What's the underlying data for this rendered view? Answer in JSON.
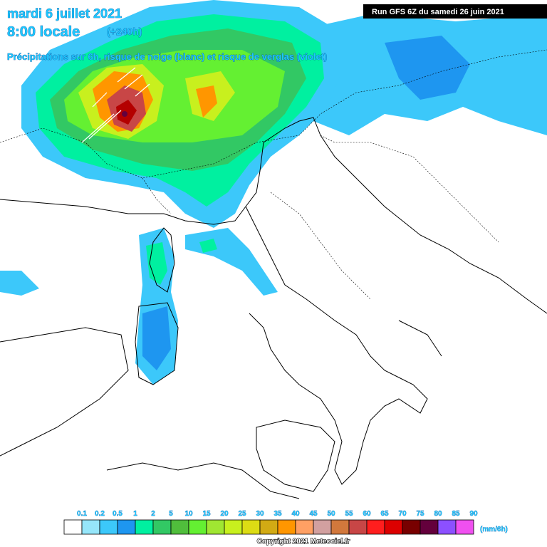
{
  "header": {
    "date": "mardi 6 juillet 2021",
    "time": "8:00 locale",
    "lead": "(+240h)",
    "subtitle": "Précipitations sur 6h, risque de neige (blanc) et risque de verglas (violet)",
    "run": "Run GFS 6Z du samedi 26 juin 2021"
  },
  "legend": {
    "labels": [
      "0.1",
      "0.2",
      "0.5",
      "1",
      "2",
      "5",
      "10",
      "15",
      "20",
      "25",
      "30",
      "35",
      "40",
      "45",
      "50",
      "55",
      "60",
      "65",
      "70",
      "75",
      "80",
      "85",
      "90"
    ],
    "colors": [
      "#ffffff",
      "#96e6fa",
      "#3cc8fa",
      "#1e96f0",
      "#00f0a0",
      "#32c864",
      "#50be3c",
      "#64f032",
      "#a0e632",
      "#c8f01e",
      "#dcdc14",
      "#d2aa14",
      "#ff9600",
      "#ffa064",
      "#d2a0a0",
      "#d2783c",
      "#c84646",
      "#ff1e1e",
      "#dc0000",
      "#780000",
      "#64003c",
      "#8c50ff",
      "#f050f0"
    ],
    "unit": "(mm/6h)"
  },
  "footer": {
    "copyright": "Copyright 2021 Meteociel.fr"
  }
}
